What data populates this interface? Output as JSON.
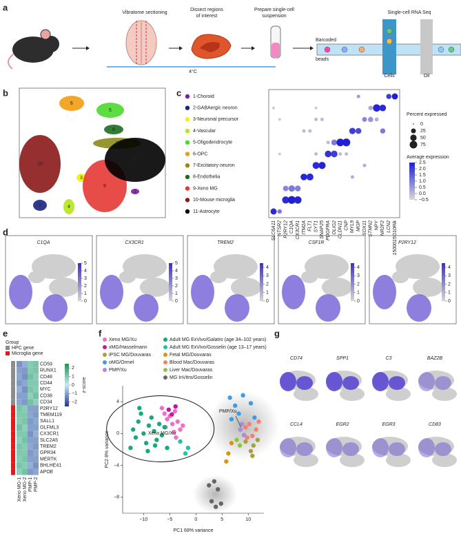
{
  "panel_labels": [
    "a",
    "b",
    "c",
    "d",
    "e",
    "f",
    "g"
  ],
  "workflow": {
    "steps": [
      [
        "Vibratome sectioning"
      ],
      [
        "Dissect regions",
        "of interest"
      ],
      [
        "Prepare single-cell",
        "suspension"
      ],
      [
        "Single-cell RNA Seq"
      ]
    ],
    "temperature": "4°C",
    "beads": [
      "Barcoded",
      "beads"
    ],
    "cells": "Cells",
    "oil": "Oil"
  },
  "tsne": {
    "cluster_labels": [
      "1",
      "2",
      "3",
      "4",
      "5",
      "6",
      "7",
      "8",
      "9",
      "10",
      "11"
    ]
  },
  "dot_plot": {
    "clusters": [
      {
        "name": "1-Choroid",
        "color": "#7b1fa2"
      },
      {
        "name": "2-GABAergic neuron",
        "color": "#1a237e"
      },
      {
        "name": "3-Neuronal precursor",
        "color": "#f2f20a"
      },
      {
        "name": "4-Vascular",
        "color": "#b5e61d"
      },
      {
        "name": "5-Oligodendrocyte",
        "color": "#4cd92f"
      },
      {
        "name": "6-OPC",
        "color": "#f39c12"
      },
      {
        "name": "7-Excitatory neuron",
        "color": "#8c8c1a"
      },
      {
        "name": "8-Endothelia",
        "color": "#1b6e20"
      },
      {
        "name": "9-Xeno MG",
        "color": "#e53935"
      },
      {
        "name": "10-Mouse microglia",
        "color": "#8b1a1a"
      },
      {
        "name": "11-Astrocyte",
        "color": "#000000"
      }
    ],
    "genes": [
      "SLC6A11",
      "NTSR2",
      "P2RY12",
      "C1QA",
      "CX3CR1",
      "ITM2A",
      "FLT1",
      "SYT1",
      "SNAP25",
      "PDGFRA",
      "OLIG2",
      "CLDN11",
      "CNP",
      "MYL9",
      "MGP",
      "SOX11",
      "STMN2",
      "NPY",
      "NR2F2",
      "LCN2",
      "1500015O10Rik"
    ],
    "percent": [
      [
        null,
        null,
        null,
        null,
        null,
        null,
        null,
        null,
        null,
        null,
        null,
        null,
        null,
        null,
        10,
        null,
        null,
        null,
        null,
        30,
        45
      ],
      [
        5,
        null,
        null,
        null,
        null,
        null,
        null,
        5,
        null,
        null,
        null,
        null,
        null,
        null,
        null,
        null,
        20,
        70,
        55,
        null,
        null
      ],
      [
        null,
        5,
        null,
        null,
        null,
        null,
        null,
        10,
        10,
        null,
        null,
        null,
        null,
        null,
        null,
        25,
        30,
        15,
        null,
        null,
        null
      ],
      [
        null,
        null,
        null,
        null,
        null,
        10,
        10,
        null,
        null,
        null,
        null,
        null,
        null,
        50,
        40,
        null,
        null,
        null,
        30,
        null,
        null
      ],
      [
        null,
        null,
        null,
        null,
        null,
        null,
        null,
        null,
        null,
        10,
        40,
        75,
        80,
        null,
        null,
        null,
        null,
        null,
        null,
        null,
        null
      ],
      [
        null,
        5,
        null,
        null,
        null,
        null,
        null,
        10,
        null,
        55,
        55,
        10,
        10,
        null,
        null,
        null,
        null,
        null,
        null,
        null,
        null
      ],
      [
        null,
        null,
        null,
        null,
        null,
        null,
        null,
        60,
        65,
        null,
        null,
        null,
        null,
        null,
        null,
        10,
        null,
        null,
        null,
        null,
        null
      ],
      [
        null,
        null,
        null,
        null,
        null,
        55,
        60,
        null,
        null,
        null,
        null,
        null,
        null,
        10,
        null,
        null,
        null,
        null,
        null,
        null,
        null
      ],
      [
        null,
        null,
        35,
        50,
        40,
        null,
        null,
        null,
        null,
        null,
        null,
        null,
        null,
        null,
        null,
        null,
        null,
        null,
        null,
        null,
        null
      ],
      [
        null,
        null,
        65,
        80,
        70,
        null,
        null,
        null,
        null,
        null,
        null,
        null,
        null,
        null,
        null,
        null,
        null,
        null,
        null,
        null,
        null
      ],
      [
        45,
        20,
        null,
        null,
        null,
        null,
        null,
        null,
        null,
        null,
        null,
        null,
        null,
        null,
        null,
        null,
        null,
        null,
        null,
        null,
        null
      ]
    ],
    "expression": [
      [
        null,
        null,
        null,
        null,
        null,
        null,
        null,
        null,
        null,
        null,
        null,
        null,
        null,
        null,
        0.5,
        null,
        null,
        null,
        null,
        2.0,
        2.5
      ],
      [
        -0.3,
        null,
        null,
        null,
        null,
        null,
        null,
        -0.3,
        null,
        null,
        null,
        null,
        null,
        null,
        null,
        null,
        0.3,
        2.4,
        2.3,
        null,
        null
      ],
      [
        null,
        -0.3,
        null,
        null,
        null,
        null,
        null,
        0,
        0,
        null,
        null,
        null,
        null,
        null,
        null,
        0.8,
        0.6,
        0.2,
        null,
        null,
        null
      ],
      [
        null,
        null,
        null,
        null,
        null,
        0,
        0,
        null,
        null,
        null,
        null,
        null,
        null,
        2.0,
        1.8,
        null,
        null,
        null,
        1.0,
        null,
        null
      ],
      [
        null,
        null,
        null,
        null,
        null,
        null,
        null,
        null,
        null,
        0,
        1.0,
        2.5,
        2.5,
        null,
        null,
        null,
        null,
        null,
        null,
        null,
        null
      ],
      [
        null,
        -0.3,
        null,
        null,
        null,
        null,
        null,
        0,
        null,
        2.2,
        2.0,
        0,
        0,
        null,
        null,
        null,
        null,
        null,
        null,
        null,
        null
      ],
      [
        null,
        null,
        null,
        null,
        null,
        null,
        null,
        2.3,
        2.4,
        null,
        null,
        null,
        null,
        null,
        null,
        0.2,
        null,
        null,
        null,
        null,
        null
      ],
      [
        null,
        null,
        null,
        null,
        null,
        2.4,
        2.3,
        null,
        null,
        null,
        null,
        null,
        null,
        0.2,
        null,
        null,
        null,
        null,
        null,
        null,
        null
      ],
      [
        null,
        null,
        0.8,
        1.0,
        0.9,
        null,
        null,
        null,
        null,
        null,
        null,
        null,
        null,
        null,
        null,
        null,
        null,
        null,
        null,
        null,
        null
      ],
      [
        null,
        null,
        2.3,
        2.5,
        2.4,
        null,
        null,
        null,
        null,
        null,
        null,
        null,
        null,
        null,
        null,
        null,
        null,
        null,
        null,
        null,
        null
      ],
      [
        2.3,
        1.0,
        null,
        null,
        null,
        null,
        null,
        null,
        null,
        null,
        null,
        null,
        null,
        null,
        null,
        null,
        null,
        null,
        null,
        null,
        null
      ]
    ],
    "size_title": "Percent expressed",
    "size_ticks": [
      0,
      25,
      50,
      75
    ],
    "color_title": "Average expression",
    "color_lim": [
      -0.5,
      2.5
    ],
    "color_ticks": [
      2.5,
      {
        "value": 2,
        "label": "2.0"
      },
      1.5,
      {
        "value": 1,
        "label": "1.0"
      },
      0.5,
      {
        "value": 0,
        "label": "0.0"
      },
      {
        "value": -0.5,
        "label": "−0.5"
      }
    ],
    "low_color": "#d9d9d9",
    "high_color": "#1f1fd6"
  },
  "feature_plots": [
    {
      "gene": "C1QA",
      "lim": [
        0,
        5
      ],
      "ticks": [
        0,
        1,
        2,
        3,
        4,
        5
      ]
    },
    {
      "gene": "CX3CR1",
      "lim": [
        0,
        5
      ],
      "ticks": [
        0,
        1,
        2,
        3,
        4,
        5
      ]
    },
    {
      "gene": "TREM2",
      "lim": [
        0,
        4.5
      ],
      "ticks": [
        0,
        1,
        2,
        3,
        4
      ]
    },
    {
      "gene": "CSF1R",
      "lim": [
        0,
        4.5
      ],
      "ticks": [
        0,
        1,
        2,
        3,
        4
      ]
    },
    {
      "gene": "P2RY12",
      "lim": [
        0,
        4.5
      ],
      "ticks": [
        0,
        1,
        2,
        3,
        4
      ]
    }
  ],
  "heatmap": {
    "group_title": "Group",
    "samples": [
      "Xeno MG-1",
      "Xeno MG-2",
      "PMP-1",
      "PMP-2"
    ],
    "groups": [
      {
        "name": "HPC gene",
        "color": "#8c8c8c",
        "genes": [
          "CD59",
          "RUNX1",
          "CD48",
          "CD44",
          "MYC",
          "CD38",
          "CD34"
        ],
        "values": [
          [
            -1.2,
            -0.8,
            0.9,
            1.1
          ],
          [
            -1.0,
            -1.1,
            1.0,
            1.1
          ],
          [
            -0.9,
            -1.2,
            1.2,
            0.9
          ],
          [
            -1.1,
            -0.9,
            1.0,
            1.0
          ],
          [
            -0.8,
            -1.2,
            1.1,
            0.9
          ],
          [
            -1.0,
            -1.0,
            0.8,
            1.2
          ],
          [
            -0.9,
            -1.1,
            1.2,
            0.8
          ]
        ]
      },
      {
        "name": "Microglia gene",
        "color": "#e31a1c",
        "genes": [
          "P2RY12",
          "TMEM119",
          "SALL1",
          "OLFML3",
          "CX3CR1",
          "SLC2A5",
          "TREM2",
          "GPR34",
          "MERTK",
          "BHLHE41",
          "APOE"
        ],
        "values": [
          [
            1.1,
            0.9,
            -1.0,
            -1.0
          ],
          [
            1.0,
            1.0,
            -0.9,
            -1.1
          ],
          [
            0.9,
            1.1,
            -1.1,
            -0.9
          ],
          [
            1.2,
            0.8,
            -1.0,
            -1.0
          ],
          [
            1.0,
            1.0,
            -1.2,
            -0.8
          ],
          [
            0.8,
            1.2,
            -1.0,
            -1.0
          ],
          [
            1.1,
            0.9,
            -0.9,
            -1.1
          ],
          [
            1.0,
            1.0,
            -1.1,
            -0.9
          ],
          [
            0.9,
            1.1,
            -1.0,
            -1.0
          ],
          [
            1.1,
            0.9,
            -0.8,
            -1.2
          ],
          [
            0.8,
            1.2,
            -1.1,
            -0.9
          ]
        ]
      }
    ],
    "colorbar_title": "z-score",
    "lim": [
      -2.5,
      2.5
    ],
    "ticks": [
      2,
      1,
      0,
      {
        "value": -1,
        "label": "−1"
      },
      {
        "value": -2,
        "label": "−2"
      }
    ],
    "low_color": "#253494",
    "mid_color": "#c7e9f0",
    "high_color": "#1a9850"
  },
  "pca": {
    "xlabel": "PC1 68% variance",
    "ylabel": "PC2 8% variance",
    "xlim": [
      -14,
      13
    ],
    "ylim": [
      -10,
      6
    ],
    "xticks": [
      {
        "value": -10,
        "label": "−10"
      },
      {
        "value": -5,
        "label": "−5"
      },
      0,
      5,
      10
    ],
    "yticks": [
      4,
      0,
      {
        "value": -4,
        "label": "−4"
      },
      {
        "value": -8,
        "label": "−8"
      }
    ],
    "annotations": [
      "Xeno MG/Xu",
      "PMP/Xu"
    ],
    "series": [
      {
        "name": "Xeno MG/Xu",
        "color": "#f06ecb",
        "x": [
          -6,
          -5.5,
          -5,
          -4.5,
          -4,
          -3.5,
          -3,
          -5.8,
          -4.2,
          -3.8,
          -2.5,
          -6.5
        ],
        "y": [
          2.5,
          1.8,
          2.2,
          1.2,
          2.8,
          1.5,
          0.5,
          0.8,
          0.2,
          -0.5,
          1.0,
          3.2
        ]
      },
      {
        "name": "xMG/Hasselmann",
        "color": "#c2189f",
        "x": [
          -5.2,
          -4.6,
          -3.9
        ],
        "y": [
          3.0,
          2.4,
          3.4
        ]
      },
      {
        "name": "iPSC MG/Douvaras",
        "color": "#a8a03a",
        "x": [
          9.5,
          10.5,
          11,
          11.8,
          10.8
        ],
        "y": [
          -1.0,
          -2.2,
          -1.5,
          -0.8,
          -2.8
        ]
      },
      {
        "name": "oMG/Ormel",
        "color": "#3d9be9",
        "x": [
          6.5,
          7.5,
          8.2,
          9,
          10.5,
          6.8,
          11.2
        ],
        "y": [
          4.5,
          3.5,
          2.5,
          4.8,
          3.8,
          1.8,
          2.0
        ]
      },
      {
        "name": "PMP/Xu",
        "color": "#a78bdc",
        "x": [
          8.5,
          8.8,
          9.2
        ],
        "y": [
          0.5,
          1.2,
          -0.2
        ]
      },
      {
        "name": "Adult MG ExVivo/Galatro (age 34–102 years)",
        "color": "#19a974",
        "x": [
          -12,
          -11.5,
          -11,
          -10.5,
          -10,
          -9.5,
          -9,
          -8.5,
          -8,
          -7.5,
          -7,
          -6.5,
          -6,
          -12.5,
          -10.8,
          -9.2,
          -7.8,
          -5.5
        ],
        "y": [
          0.5,
          -0.5,
          1.5,
          2.5,
          0,
          -1.2,
          1,
          2,
          0.3,
          -0.8,
          1.2,
          -0.2,
          0.8,
          -1.8,
          3.2,
          -2.2,
          -1.5,
          -1.8
        ]
      },
      {
        "name": "Adult MG ExVivo/Gosselin (age 13–17 years)",
        "color": "#20c4a0",
        "x": [
          -3,
          -2,
          -1.5
        ],
        "y": [
          -1,
          -2.5,
          -1.8
        ]
      },
      {
        "name": "Fetal MG/Douvaras",
        "color": "#d8960f",
        "x": [
          6.2,
          6.8,
          5.8
        ],
        "y": [
          -2.5,
          -1.2,
          -3.5
        ]
      },
      {
        "name": "Blood Mac/Douvaras",
        "color": "#f4816f",
        "x": [
          9.5,
          10.2,
          11.5,
          12,
          10.8,
          9.8
        ],
        "y": [
          0.8,
          1.2,
          0.5,
          1.5,
          -0.3,
          -0.5
        ]
      },
      {
        "name": "Liver Mac/Douvaras",
        "color": "#8dc63f",
        "x": [
          7.8,
          8.4
        ],
        "y": [
          -0.8,
          -1.5
        ]
      },
      {
        "name": "MG InVitro/Gosselin",
        "color": "#666666",
        "x": [
          2.5,
          3.5,
          4.2,
          3,
          4.8,
          3.8
        ],
        "y": [
          -6.5,
          -6,
          -7,
          -8.5,
          -8.8,
          -9.2
        ]
      }
    ]
  },
  "expression_plots": {
    "genes": [
      "CD74",
      "SPP1",
      "C3",
      "BAZ2B",
      "CCL4",
      "EGR2",
      "EGR3",
      "CD83"
    ]
  }
}
